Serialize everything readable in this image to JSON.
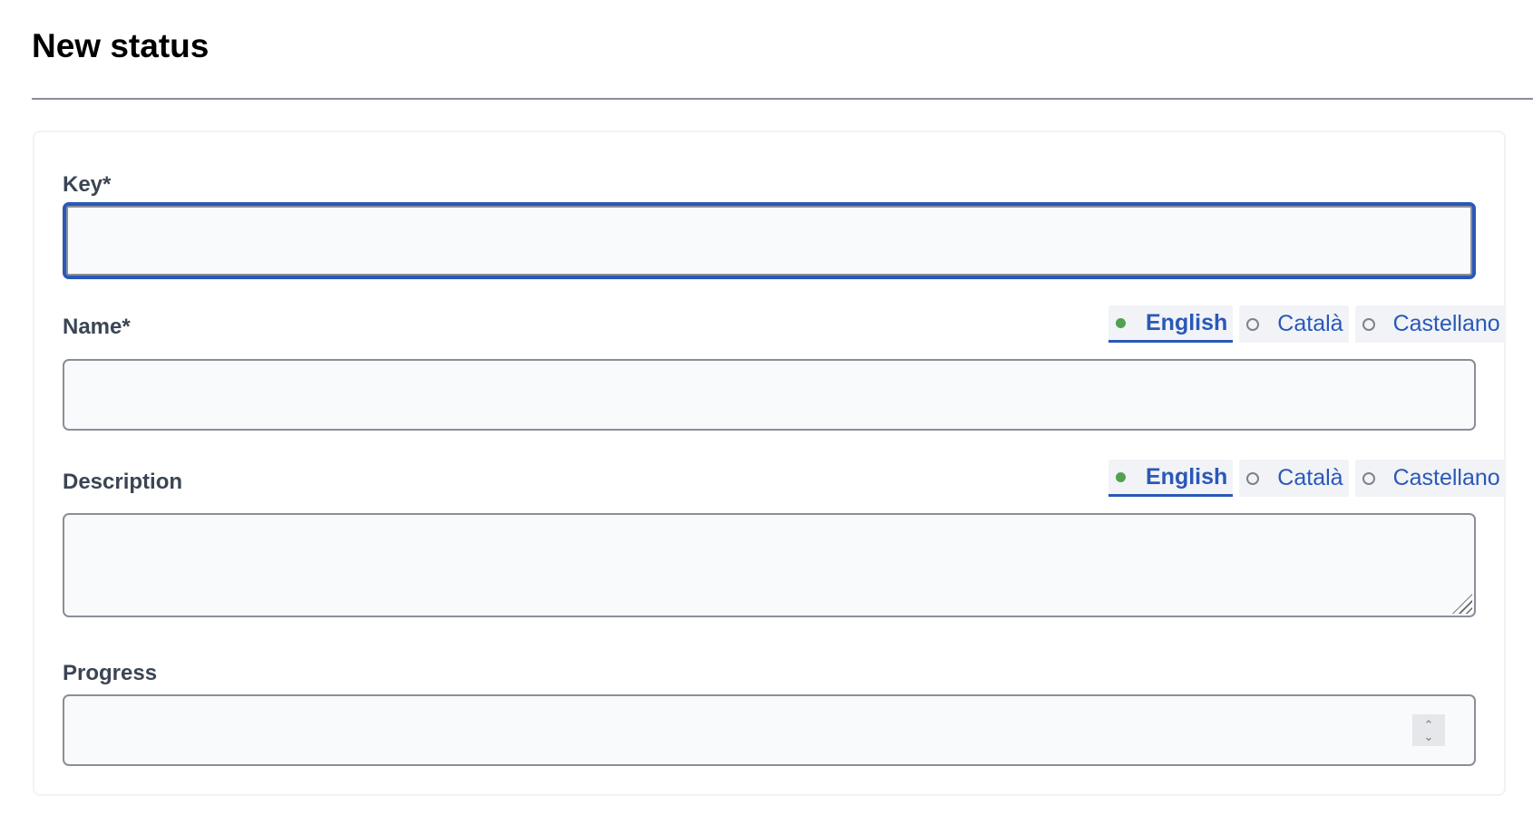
{
  "page": {
    "title": "New status"
  },
  "form": {
    "key": {
      "label": "Key*",
      "value": ""
    },
    "name": {
      "label": "Name*",
      "value": "",
      "languages": [
        {
          "label": "English",
          "active": true,
          "filled": true
        },
        {
          "label": "Català",
          "active": false,
          "filled": false
        },
        {
          "label": "Castellano",
          "active": false,
          "filled": false
        }
      ]
    },
    "description": {
      "label": "Description",
      "value": "",
      "languages": [
        {
          "label": "English",
          "active": true,
          "filled": true
        },
        {
          "label": "Català",
          "active": false,
          "filled": false
        },
        {
          "label": "Castellano",
          "active": false,
          "filled": false
        }
      ]
    },
    "progress": {
      "label": "Progress",
      "value": ""
    }
  },
  "colors": {
    "accent": "#2a58b8",
    "filled_dot": "#52a150"
  }
}
